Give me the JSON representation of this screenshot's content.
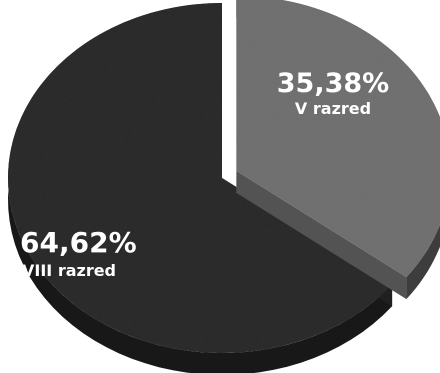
{
  "chart_data": {
    "type": "pie",
    "style": "3d-exploded",
    "slices": [
      {
        "label": "V razred",
        "value": 35.38,
        "value_text": "35,38%",
        "color": "#6f6f6f"
      },
      {
        "label": "VIII razred",
        "value": 64.62,
        "value_text": "64,62%",
        "color": "#2b2b2b"
      }
    ],
    "title": "",
    "legend": "none"
  }
}
